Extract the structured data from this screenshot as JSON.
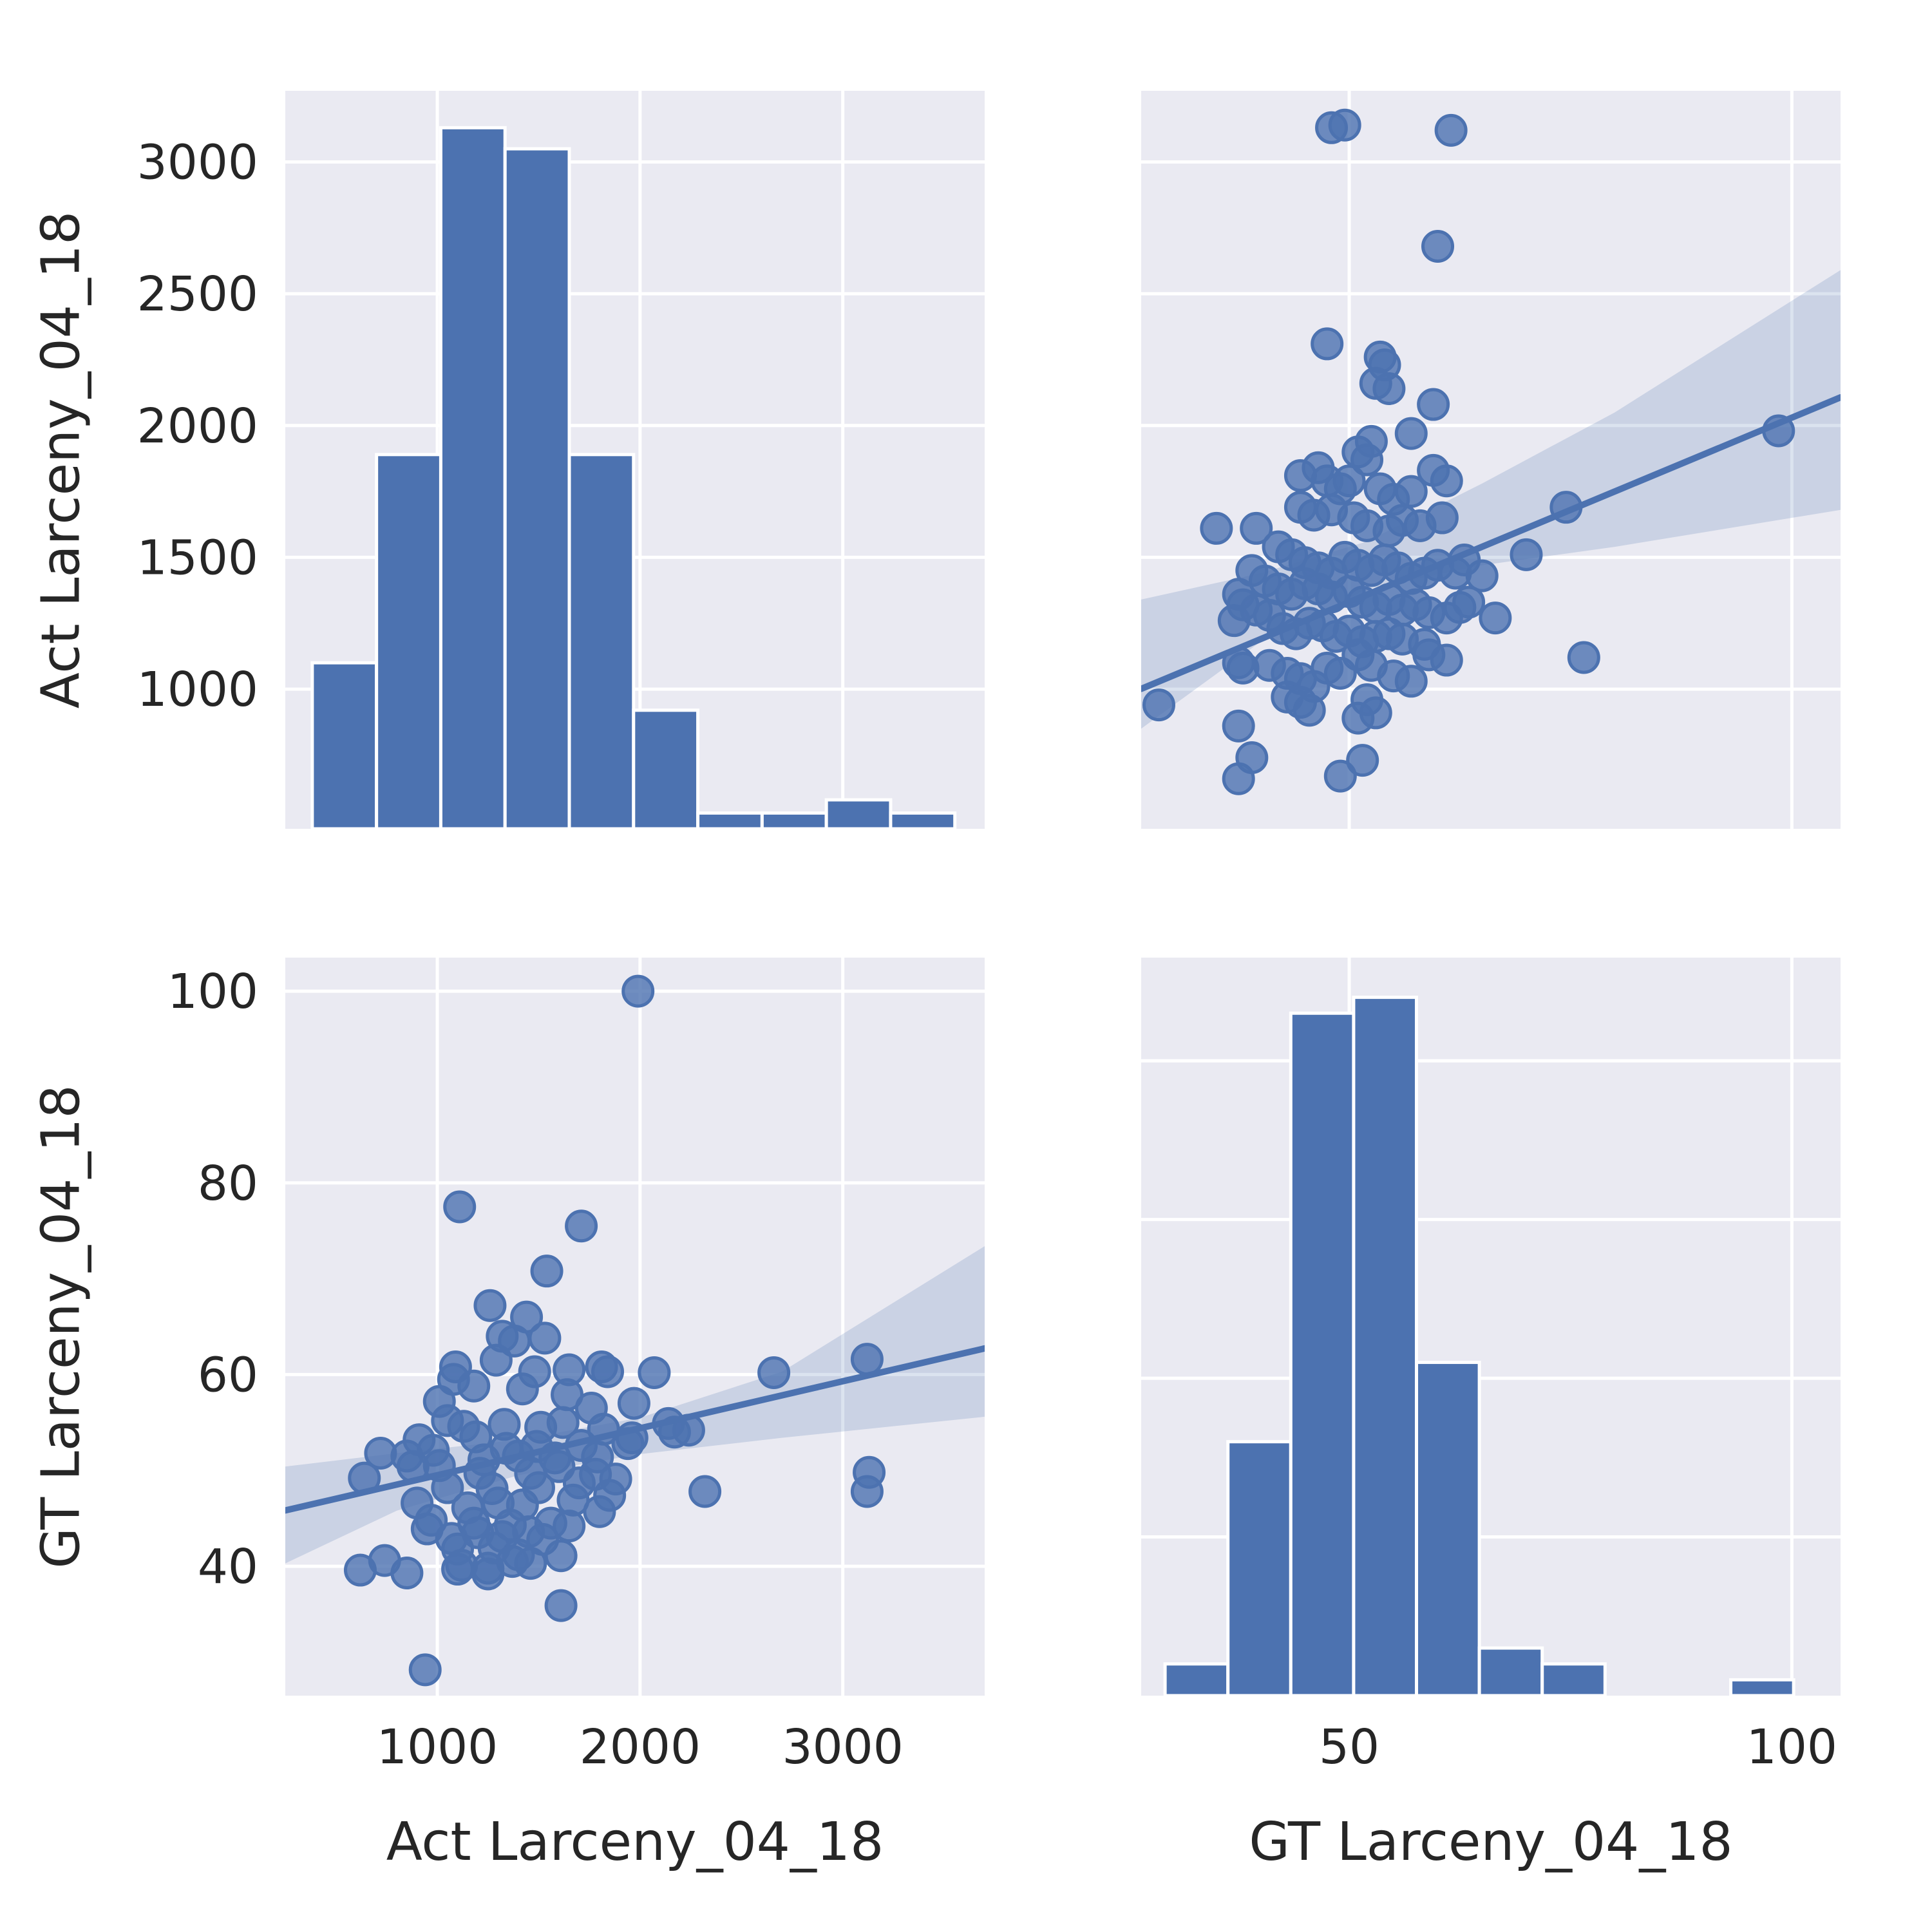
{
  "chart_data": {
    "type": "pairplot",
    "variables": [
      "Act Larceny_04_18",
      "GT Larceny_04_18"
    ],
    "style": {
      "background": "#eaeaf2",
      "grid": true,
      "grid_color": "#ffffff",
      "mark_color": "#4c72b0",
      "band_color": "#4c72b0",
      "band_opacity": 0.2,
      "point_opacity": 0.8
    },
    "panels": [
      {
        "id": "act-hist",
        "type": "bar",
        "row": 0,
        "col": 0,
        "xlabel": "",
        "ylabel": "Act Larceny_04_18",
        "xlim": [
          250,
          3700
        ],
        "ylim": [
          470,
          3270
        ],
        "xticks": [
          1000,
          2000,
          3000
        ],
        "yticks": [
          1000,
          1500,
          2000,
          2500,
          3000
        ],
        "show_xticklabels": false,
        "show_yticklabels": true,
        "bins": [
          {
            "x0": 383,
            "x1": 700,
            "value": 1100
          },
          {
            "x0": 700,
            "x1": 1017,
            "value": 1890
          },
          {
            "x0": 1017,
            "x1": 1334,
            "value": 3130
          },
          {
            "x0": 1334,
            "x1": 1651,
            "value": 3050
          },
          {
            "x0": 1651,
            "x1": 1968,
            "value": 1890
          },
          {
            "x0": 1968,
            "x1": 2285,
            "value": 920
          },
          {
            "x0": 2285,
            "x1": 2602,
            "value": 530
          },
          {
            "x0": 2602,
            "x1": 2919,
            "value": 530
          },
          {
            "x0": 2919,
            "x1": 3236,
            "value": 580
          },
          {
            "x0": 3236,
            "x1": 3553,
            "value": 530
          }
        ]
      },
      {
        "id": "act-vs-gt",
        "type": "scatter",
        "row": 0,
        "col": 1,
        "xlabel": "",
        "ylabel": "",
        "xlim": [
          26.5,
          105.5
        ],
        "ylim": [
          470,
          3270
        ],
        "xticks": [
          50,
          100
        ],
        "yticks": [
          1000,
          1500,
          2000,
          2500,
          3000
        ],
        "show_xticklabels": false,
        "show_yticklabels": false,
        "regression": {
          "intercept": 630,
          "slope": 14.0
        },
        "band": {
          "x": [
            26.5,
            40,
            52,
            65,
            80,
            105.5
          ],
          "lower": [
            850,
            1180,
            1380,
            1470,
            1540,
            1680
          ],
          "upper": [
            1340,
            1440,
            1560,
            1780,
            2050,
            2590
          ]
        },
        "points": [
          [
            48,
            3130
          ],
          [
            49.5,
            3140
          ],
          [
            61.5,
            3120
          ],
          [
            60,
            2680
          ],
          [
            47.5,
            2310
          ],
          [
            53.5,
            2260
          ],
          [
            54,
            2230
          ],
          [
            53,
            2160
          ],
          [
            54.5,
            2140
          ],
          [
            59.5,
            2080
          ],
          [
            57,
            1970
          ],
          [
            98.5,
            1980
          ],
          [
            52.5,
            1940
          ],
          [
            51,
            1900
          ],
          [
            52,
            1870
          ],
          [
            59.5,
            1830
          ],
          [
            61,
            1790
          ],
          [
            44.5,
            1810
          ],
          [
            46.5,
            1840
          ],
          [
            47.5,
            1790
          ],
          [
            49,
            1760
          ],
          [
            50,
            1790
          ],
          [
            53.5,
            1760
          ],
          [
            55,
            1720
          ],
          [
            57,
            1750
          ],
          [
            44.5,
            1690
          ],
          [
            46,
            1660
          ],
          [
            48,
            1680
          ],
          [
            50.5,
            1650
          ],
          [
            52,
            1620
          ],
          [
            54.5,
            1600
          ],
          [
            56,
            1640
          ],
          [
            58,
            1620
          ],
          [
            60.5,
            1650
          ],
          [
            74.5,
            1690
          ],
          [
            35,
            1610
          ],
          [
            39.5,
            1610
          ],
          [
            42,
            1540
          ],
          [
            43.5,
            1510
          ],
          [
            45,
            1480
          ],
          [
            46.5,
            1460
          ],
          [
            48,
            1440
          ],
          [
            49.5,
            1500
          ],
          [
            51,
            1470
          ],
          [
            52.5,
            1450
          ],
          [
            54,
            1490
          ],
          [
            55.5,
            1460
          ],
          [
            57,
            1420
          ],
          [
            58.5,
            1440
          ],
          [
            60,
            1470
          ],
          [
            62,
            1440
          ],
          [
            63,
            1490
          ],
          [
            65,
            1430
          ],
          [
            70,
            1510
          ],
          [
            39,
            1450
          ],
          [
            40.5,
            1410
          ],
          [
            42,
            1380
          ],
          [
            43.5,
            1360
          ],
          [
            45,
            1400
          ],
          [
            46.5,
            1380
          ],
          [
            48,
            1350
          ],
          [
            50,
            1370
          ],
          [
            51.5,
            1330
          ],
          [
            53,
            1310
          ],
          [
            54.5,
            1340
          ],
          [
            56,
            1300
          ],
          [
            57.5,
            1320
          ],
          [
            59,
            1290
          ],
          [
            61,
            1270
          ],
          [
            62.5,
            1310
          ],
          [
            63.5,
            1330
          ],
          [
            66.5,
            1270
          ],
          [
            37.5,
            1360
          ],
          [
            38,
            1320
          ],
          [
            37,
            1260
          ],
          [
            39.5,
            1300
          ],
          [
            41,
            1280
          ],
          [
            42.5,
            1230
          ],
          [
            44,
            1210
          ],
          [
            45.5,
            1250
          ],
          [
            47,
            1240
          ],
          [
            48.5,
            1200
          ],
          [
            50,
            1220
          ],
          [
            51.5,
            1180
          ],
          [
            53,
            1200
          ],
          [
            54.5,
            1210
          ],
          [
            56,
            1190
          ],
          [
            58.5,
            1170
          ],
          [
            37.5,
            1100
          ],
          [
            38,
            1080
          ],
          [
            41,
            1090
          ],
          [
            43,
            1060
          ],
          [
            44.5,
            1040
          ],
          [
            46,
            1010
          ],
          [
            47.5,
            1080
          ],
          [
            49,
            1060
          ],
          [
            51,
            1130
          ],
          [
            52.5,
            1090
          ],
          [
            55,
            1050
          ],
          [
            57,
            1030
          ],
          [
            59,
            1130
          ],
          [
            61,
            1110
          ],
          [
            76.5,
            1120
          ],
          [
            43,
            970
          ],
          [
            44.5,
            950
          ],
          [
            45.5,
            920
          ],
          [
            51,
            890
          ],
          [
            52,
            960
          ],
          [
            53,
            910
          ],
          [
            28.5,
            940
          ],
          [
            37.5,
            860
          ],
          [
            39,
            740
          ],
          [
            37.5,
            660
          ],
          [
            49,
            670
          ],
          [
            51.5,
            730
          ]
        ]
      },
      {
        "id": "gt-vs-act",
        "type": "scatter",
        "row": 1,
        "col": 0,
        "xlabel": "Act Larceny_04_18",
        "ylabel": "GT Larceny_04_18",
        "xlim": [
          250,
          3700
        ],
        "ylim": [
          26.5,
          103.5
        ],
        "xticks": [
          1000,
          2000,
          3000
        ],
        "yticks": [
          40,
          60,
          80,
          100
        ],
        "show_xticklabels": true,
        "show_yticklabels": true,
        "regression": {
          "intercept": 44.6,
          "slope": 0.0049
        },
        "band": {
          "x": [
            250,
            800,
            1400,
            2000,
            2700,
            3700
          ],
          "lower": [
            40.3,
            45.8,
            49.5,
            51.7,
            53.4,
            55.6
          ],
          "upper": [
            50.4,
            51.8,
            53.2,
            55.5,
            60.3,
            73.4
          ]
        },
        "points": [
          [
            1990,
            100
          ],
          [
            1110,
            77.5
          ],
          [
            1710,
            75.5
          ],
          [
            1540,
            70.8
          ],
          [
            1260,
            67.2
          ],
          [
            1440,
            66
          ],
          [
            1320,
            64
          ],
          [
            1380,
            63.5
          ],
          [
            1530,
            63.8
          ],
          [
            1290,
            61.5
          ],
          [
            1480,
            60.3
          ],
          [
            1090,
            60.8
          ],
          [
            1650,
            60.5
          ],
          [
            1810,
            60.8
          ],
          [
            1840,
            60.3
          ],
          [
            2070,
            60.2
          ],
          [
            2660,
            60.2
          ],
          [
            3120,
            61.6
          ],
          [
            1010,
            57.2
          ],
          [
            1080,
            59.5
          ],
          [
            1180,
            58.8
          ],
          [
            1420,
            58.5
          ],
          [
            1640,
            57.9
          ],
          [
            1760,
            56.5
          ],
          [
            1970,
            57
          ],
          [
            1050,
            55.2
          ],
          [
            1130,
            54.6
          ],
          [
            1330,
            54.8
          ],
          [
            1510,
            54.5
          ],
          [
            1620,
            55
          ],
          [
            1820,
            54.3
          ],
          [
            2140,
            54.9
          ],
          [
            2240,
            54.2
          ],
          [
            2170,
            54
          ],
          [
            910,
            53.2
          ],
          [
            1190,
            53.5
          ],
          [
            1340,
            52.3
          ],
          [
            1490,
            52.5
          ],
          [
            1710,
            52.6
          ],
          [
            1960,
            53.4
          ],
          [
            720,
            51.8
          ],
          [
            850,
            51.5
          ],
          [
            980,
            52.1
          ],
          [
            1230,
            51.1
          ],
          [
            1400,
            51.5
          ],
          [
            1580,
            51.3
          ],
          [
            1790,
            51.4
          ],
          [
            1940,
            52.8
          ],
          [
            640,
            49.2
          ],
          [
            880,
            50.4
          ],
          [
            1010,
            50.5
          ],
          [
            1210,
            49.7
          ],
          [
            1460,
            49.7
          ],
          [
            1600,
            50.4
          ],
          [
            1780,
            49.6
          ],
          [
            1880,
            49.1
          ],
          [
            1050,
            48.2
          ],
          [
            1270,
            48.1
          ],
          [
            1500,
            48.2
          ],
          [
            1700,
            48.7
          ],
          [
            1850,
            47.4
          ],
          [
            3130,
            49.8
          ],
          [
            3120,
            47.8
          ],
          [
            2320,
            47.8
          ],
          [
            900,
            46.6
          ],
          [
            1150,
            46.1
          ],
          [
            1300,
            46.6
          ],
          [
            1420,
            46.4
          ],
          [
            1670,
            46.9
          ],
          [
            1800,
            45.7
          ],
          [
            970,
            44.8
          ],
          [
            1180,
            44.5
          ],
          [
            1360,
            44.3
          ],
          [
            1560,
            44.5
          ],
          [
            1650,
            44.2
          ],
          [
            950,
            43.9
          ],
          [
            1070,
            42.9
          ],
          [
            1200,
            43.5
          ],
          [
            1320,
            43.1
          ],
          [
            1450,
            43.6
          ],
          [
            1520,
            42.8
          ],
          [
            1100,
            41.8
          ],
          [
            1280,
            41.9
          ],
          [
            1400,
            41.2
          ],
          [
            1610,
            41.1
          ],
          [
            1120,
            40.1
          ],
          [
            1250,
            39.8
          ],
          [
            1370,
            40.5
          ],
          [
            1460,
            40.3
          ],
          [
            620,
            39.6
          ],
          [
            740,
            40.6
          ],
          [
            850,
            39.3
          ],
          [
            1100,
            39.7
          ],
          [
            1250,
            39.2
          ],
          [
            1610,
            35.9
          ],
          [
            940,
            29.2
          ]
        ]
      },
      {
        "id": "gt-hist",
        "type": "bar",
        "row": 1,
        "col": 1,
        "xlabel": "GT Larceny_04_18",
        "ylabel": "",
        "xlim": [
          26.5,
          105.5
        ],
        "ylim": [
          0,
          46.5
        ],
        "xticks": [
          50,
          100
        ],
        "yticks": [
          10,
          20,
          30,
          40
        ],
        "show_xticklabels": true,
        "show_yticklabels": false,
        "bins": [
          {
            "x0": 29.2,
            "x1": 36.3,
            "value": 2
          },
          {
            "x0": 36.3,
            "x1": 43.4,
            "value": 16
          },
          {
            "x0": 43.4,
            "x1": 50.5,
            "value": 43
          },
          {
            "x0": 50.5,
            "x1": 57.6,
            "value": 44
          },
          {
            "x0": 57.6,
            "x1": 64.7,
            "value": 21
          },
          {
            "x0": 64.7,
            "x1": 71.8,
            "value": 3
          },
          {
            "x0": 71.8,
            "x1": 78.9,
            "value": 2
          },
          {
            "x0": 78.9,
            "x1": 86.0,
            "value": 0
          },
          {
            "x0": 86.0,
            "x1": 93.1,
            "value": 0
          },
          {
            "x0": 93.1,
            "x1": 100.2,
            "value": 1
          }
        ]
      }
    ]
  }
}
